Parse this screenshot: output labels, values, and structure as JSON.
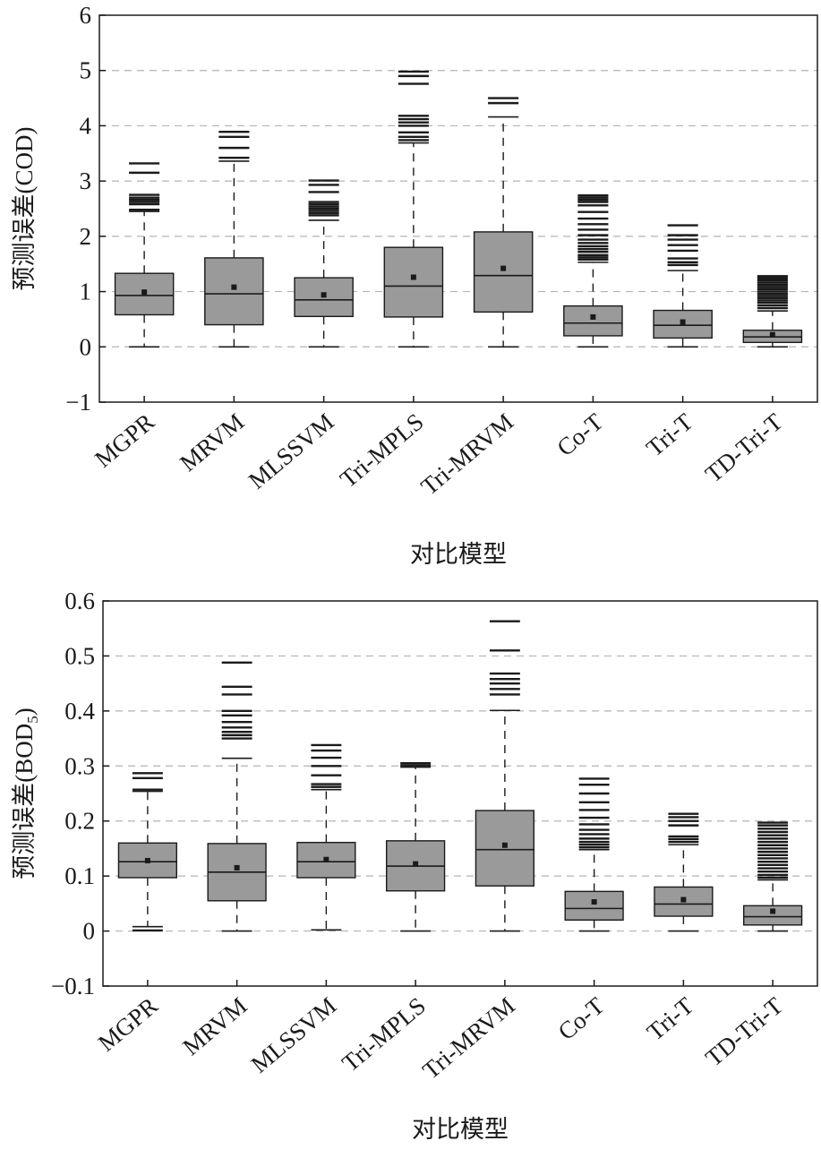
{
  "chart_data": [
    {
      "type": "box",
      "xlabel": "对比模型",
      "ylabel": "预测误差(COD)",
      "ylabel_sub": "",
      "ylim": [
        -1,
        6
      ],
      "yticks": [
        -1,
        0,
        1,
        2,
        3,
        4,
        5,
        6
      ],
      "ytick_labels": [
        "−1",
        "0",
        "1",
        "2",
        "3",
        "4",
        "5",
        "6"
      ],
      "grid_lines": [
        0,
        1,
        2,
        3,
        4,
        5
      ],
      "categories": [
        "MGPR",
        "MRVM",
        "MLSSVM",
        "Tri-MPLS",
        "Tri-MRVM",
        "Co-T",
        "Tri-T",
        "TD-Tri-T"
      ],
      "boxes": [
        {
          "min": 0,
          "q1": 0.58,
          "median": 0.93,
          "q3": 1.33,
          "max": 2.45,
          "mean": 0.99,
          "outliers": [
            2.48,
            2.58,
            2.62,
            2.66,
            2.7,
            2.75,
            3.15,
            3.32
          ]
        },
        {
          "min": 0,
          "q1": 0.4,
          "median": 0.96,
          "q3": 1.61,
          "max": 3.36,
          "mean": 1.08,
          "outliers": [
            3.42,
            3.6,
            3.8,
            3.89
          ]
        },
        {
          "min": 0,
          "q1": 0.55,
          "median": 0.85,
          "q3": 1.25,
          "max": 2.29,
          "mean": 0.94,
          "outliers": [
            2.38,
            2.42,
            2.46,
            2.5,
            2.54,
            2.58,
            2.62,
            2.8,
            2.93,
            3.01
          ]
        },
        {
          "min": 0,
          "q1": 0.54,
          "median": 1.1,
          "q3": 1.8,
          "max": 3.69,
          "mean": 1.26,
          "outliers": [
            3.74,
            3.8,
            3.88,
            4.0,
            4.06,
            4.12,
            4.18,
            4.76,
            4.9,
            4.98
          ]
        },
        {
          "min": 0,
          "q1": 0.63,
          "median": 1.29,
          "q3": 2.08,
          "max": 4.16,
          "mean": 1.42,
          "outliers": [
            4.41,
            4.5
          ]
        },
        {
          "min": 0,
          "q1": 0.2,
          "median": 0.43,
          "q3": 0.74,
          "max": 1.53,
          "mean": 0.54,
          "outliers": [
            1.58,
            1.62,
            1.66,
            1.72,
            1.77,
            1.82,
            1.88,
            1.94,
            2.02,
            2.12,
            2.22,
            2.32,
            2.44,
            2.56,
            2.62,
            2.66,
            2.7,
            2.74
          ]
        },
        {
          "min": 0,
          "q1": 0.16,
          "median": 0.39,
          "q3": 0.66,
          "max": 1.38,
          "mean": 0.45,
          "outliers": [
            1.48,
            1.53,
            1.6,
            1.74,
            1.84,
            1.94,
            2.02,
            2.2
          ]
        },
        {
          "min": 0,
          "q1": 0.08,
          "median": 0.18,
          "q3": 0.3,
          "max": 0.65,
          "mean": 0.22,
          "outliers": [
            0.7,
            0.75,
            0.8,
            0.84,
            0.88,
            0.92,
            0.96,
            1.0,
            1.04,
            1.08,
            1.12,
            1.16,
            1.2,
            1.24,
            1.28
          ]
        }
      ]
    },
    {
      "type": "box",
      "xlabel": "对比模型",
      "ylabel": "预测误差(BOD",
      "ylabel_sub": "5",
      "ylabel_tail": ")",
      "ylim": [
        -0.1,
        0.6
      ],
      "yticks": [
        -0.1,
        0,
        0.1,
        0.2,
        0.3,
        0.4,
        0.5,
        0.6
      ],
      "ytick_labels": [
        "−0.1",
        "0",
        "0.1",
        "0.2",
        "0.3",
        "0.4",
        "0.5",
        "0.6"
      ],
      "grid_lines": [
        0,
        0.1,
        0.2,
        0.3,
        0.4,
        0.5
      ],
      "categories": [
        "MGPR",
        "MRVM",
        "MLSSVM",
        "Tri-MPLS",
        "Tri-MRVM",
        "Co-T",
        "Tri-T",
        "TD-Tri-T"
      ],
      "boxes": [
        {
          "min": 0.008,
          "q1": 0.097,
          "median": 0.126,
          "q3": 0.16,
          "max": 0.254,
          "mean": 0.128,
          "outliers": [
            0.001,
            0.257,
            0.278,
            0.287
          ]
        },
        {
          "min": 0,
          "q1": 0.055,
          "median": 0.107,
          "q3": 0.159,
          "max": 0.314,
          "mean": 0.115,
          "outliers": [
            0.35,
            0.356,
            0.362,
            0.37,
            0.38,
            0.392,
            0.4,
            0.43,
            0.444,
            0.488
          ]
        },
        {
          "min": 0.002,
          "q1": 0.097,
          "median": 0.126,
          "q3": 0.161,
          "max": 0.257,
          "mean": 0.13,
          "outliers": [
            0.262,
            0.267,
            0.283,
            0.3,
            0.315,
            0.328,
            0.338
          ]
        },
        {
          "min": 0,
          "q1": 0.073,
          "median": 0.118,
          "q3": 0.164,
          "max": 0.298,
          "mean": 0.122,
          "outliers": [
            0.301,
            0.305
          ]
        },
        {
          "min": 0,
          "q1": 0.082,
          "median": 0.148,
          "q3": 0.219,
          "max": 0.401,
          "mean": 0.156,
          "outliers": [
            0.43,
            0.44,
            0.45,
            0.458,
            0.468,
            0.51,
            0.563
          ]
        },
        {
          "min": 0,
          "q1": 0.02,
          "median": 0.041,
          "q3": 0.072,
          "max": 0.148,
          "mean": 0.053,
          "outliers": [
            0.152,
            0.157,
            0.162,
            0.168,
            0.176,
            0.184,
            0.194,
            0.206,
            0.22,
            0.234,
            0.25,
            0.266,
            0.277
          ]
        },
        {
          "min": 0,
          "q1": 0.027,
          "median": 0.049,
          "q3": 0.08,
          "max": 0.157,
          "mean": 0.057,
          "outliers": [
            0.162,
            0.167,
            0.172,
            0.192,
            0.2,
            0.207,
            0.213
          ]
        },
        {
          "min": 0,
          "q1": 0.011,
          "median": 0.026,
          "q3": 0.046,
          "max": 0.093,
          "mean": 0.036,
          "outliers": [
            0.097,
            0.102,
            0.108,
            0.114,
            0.12,
            0.126,
            0.132,
            0.138,
            0.144,
            0.15,
            0.156,
            0.162,
            0.168,
            0.174,
            0.18,
            0.186,
            0.192,
            0.197
          ]
        }
      ]
    }
  ]
}
